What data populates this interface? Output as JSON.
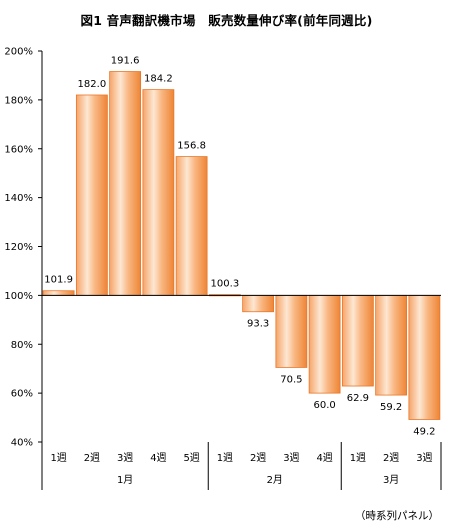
{
  "chart_data": {
    "type": "bar",
    "title": "図1 音声翻訳機市場　販売数量伸び率(前年同週比)",
    "source_note": "（時系列パネル）",
    "baseline": 100,
    "ylim": [
      40,
      200
    ],
    "yticks": [
      "40%",
      "60%",
      "80%",
      "100%",
      "120%",
      "140%",
      "160%",
      "180%",
      "200%"
    ],
    "ytick_values": [
      40,
      60,
      80,
      100,
      120,
      140,
      160,
      180,
      200
    ],
    "grid": false,
    "categories": [
      "1週",
      "2週",
      "3週",
      "4週",
      "5週",
      "1週",
      "2週",
      "3週",
      "4週",
      "1週",
      "2週",
      "3週"
    ],
    "values": [
      101.9,
      182.0,
      191.6,
      184.2,
      156.8,
      100.3,
      93.3,
      70.5,
      60.0,
      62.9,
      59.2,
      49.2
    ],
    "value_labels": [
      "101.9",
      "182.0",
      "191.6",
      "184.2",
      "156.8",
      "100.3",
      "93.3",
      "70.5",
      "60.0",
      "62.9",
      "59.2",
      "49.2"
    ],
    "groups": [
      {
        "label": "1月",
        "count": 5
      },
      {
        "label": "2月",
        "count": 4
      },
      {
        "label": "3月",
        "count": 3
      }
    ],
    "colors": {
      "bar_light": "#fde3cb",
      "bar_dark": "#f08a3a",
      "bar_edge": "#e8772a"
    }
  }
}
